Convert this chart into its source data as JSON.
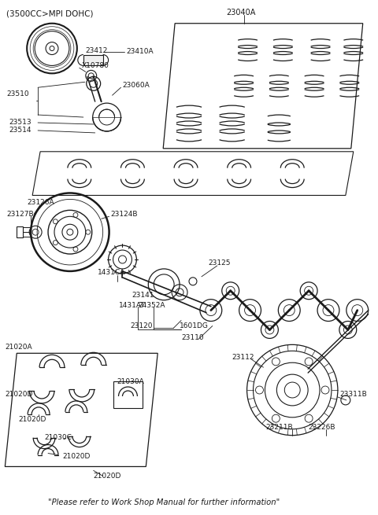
{
  "bg_color": "#ffffff",
  "line_color": "#1a1a1a",
  "text_color": "#1a1a1a",
  "fig_width": 4.8,
  "fig_height": 6.55,
  "dpi": 100,
  "header_note": "(3500CC>MPI DOHC)",
  "footer": "\"Please refer to Work Shop Manual for further information\"",
  "label_23040A": "23040A",
  "label_23412": "23412",
  "label_23410A": "23410A",
  "label_X10780": "X10780",
  "label_23510": "23510",
  "label_23060A": "23060A",
  "label_23513": "23513",
  "label_23514": "23514",
  "label_23126A": "23126A",
  "label_23127B": "23127B",
  "label_23124B": "23124B",
  "label_1431CA": "1431CA",
  "label_1431AT": "1431AT",
  "label_23141": "23141",
  "label_24352A": "24352A",
  "label_23125": "23125",
  "label_23110": "23110",
  "label_23120": "23120",
  "label_1601DG": "1601DG",
  "label_23112": "23112",
  "label_23211B": "23211B",
  "label_23226B": "23226B",
  "label_23311B": "23311B",
  "label_21020A": "21020A",
  "label_21030A": "21030A",
  "label_21020D": "21020D",
  "label_21030C": "21030C"
}
